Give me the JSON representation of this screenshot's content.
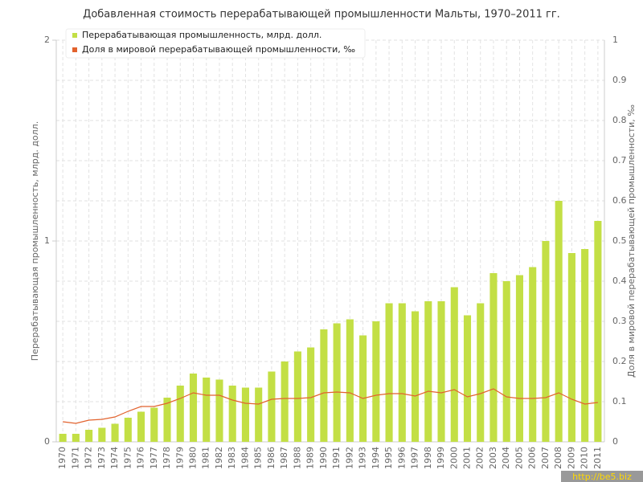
{
  "chart_data": {
    "type": "bar-line",
    "title": "Добавленная стоимость перерабатывающей промышленности Мальты, 1970–2011 гг.",
    "y_label": "Перерабатывающая промышленность, млрд. долл.",
    "y2_label": "Доля в мировой перерабатывающей промышленности, ‰",
    "categories": [
      "1970",
      "1971",
      "1972",
      "1973",
      "1974",
      "1975",
      "1976",
      "1977",
      "1978",
      "1979",
      "1980",
      "1981",
      "1982",
      "1983",
      "1984",
      "1985",
      "1986",
      "1987",
      "1988",
      "1989",
      "1990",
      "1991",
      "1992",
      "1993",
      "1994",
      "1995",
      "1996",
      "1997",
      "1998",
      "1999",
      "2000",
      "2001",
      "2002",
      "2003",
      "2004",
      "2005",
      "2006",
      "2007",
      "2008",
      "2009",
      "2010",
      "2011"
    ],
    "series": [
      {
        "name": "Перерабатывающая промышленность, млрд. долл.",
        "type": "bar",
        "color": "#c3df45",
        "values": [
          0.04,
          0.04,
          0.06,
          0.07,
          0.09,
          0.12,
          0.15,
          0.17,
          0.22,
          0.28,
          0.34,
          0.32,
          0.31,
          0.28,
          0.27,
          0.27,
          0.35,
          0.4,
          0.45,
          0.47,
          0.56,
          0.59,
          0.61,
          0.53,
          0.6,
          0.69,
          0.69,
          0.65,
          0.7,
          0.7,
          0.77,
          0.63,
          0.69,
          0.84,
          0.8,
          0.83,
          0.87,
          1.0,
          1.2,
          0.94,
          0.96,
          1.1
        ]
      },
      {
        "name": "Доля в мировой перерабатывающей промышленности, ‰",
        "type": "line",
        "axis": "y2",
        "color": "#e2622d",
        "values": [
          0.05,
          0.046,
          0.054,
          0.056,
          0.062,
          0.076,
          0.088,
          0.088,
          0.096,
          0.108,
          0.122,
          0.116,
          0.116,
          0.104,
          0.096,
          0.094,
          0.106,
          0.108,
          0.108,
          0.11,
          0.122,
          0.124,
          0.122,
          0.108,
          0.116,
          0.12,
          0.12,
          0.114,
          0.126,
          0.122,
          0.13,
          0.112,
          0.12,
          0.132,
          0.112,
          0.108,
          0.108,
          0.11,
          0.122,
          0.106,
          0.094,
          0.098
        ]
      }
    ],
    "ylim": [
      0,
      2
    ],
    "yticks": [
      0,
      1,
      2
    ],
    "y2lim": [
      0,
      1
    ],
    "y2ticks": [
      0,
      0.1,
      0.2,
      0.3,
      0.4,
      0.5,
      0.6,
      0.7,
      0.8,
      0.9,
      1
    ],
    "grid": true,
    "legend": "top-left",
    "watermark": "http://be5.biz"
  }
}
